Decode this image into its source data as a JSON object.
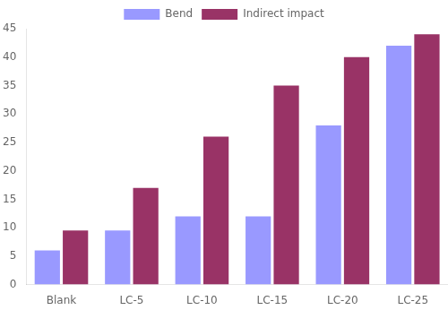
{
  "chart_data": {
    "type": "bar",
    "categories": [
      "Blank",
      "LC-5",
      "LC-10",
      "LC-15",
      "LC-20",
      "LC-25"
    ],
    "series": [
      {
        "name": "Bend",
        "color": "#9999FF",
        "values": [
          6,
          9.5,
          12,
          12,
          28,
          42
        ]
      },
      {
        "name": "Indirect impact",
        "color": "#993366",
        "values": [
          9.5,
          17,
          26,
          35,
          40,
          44
        ]
      }
    ],
    "ylim": [
      0,
      45
    ],
    "yticks": [
      0,
      5,
      10,
      15,
      20,
      25,
      30,
      35,
      40,
      45
    ],
    "grid": false,
    "legend": "top"
  }
}
